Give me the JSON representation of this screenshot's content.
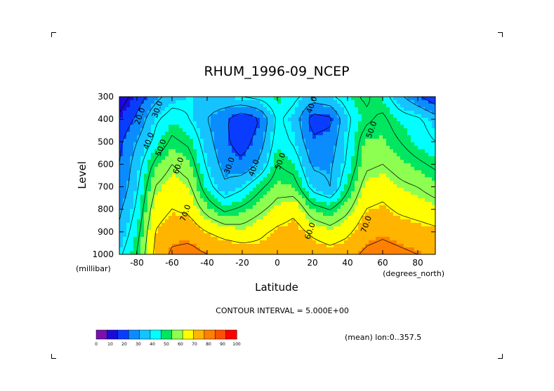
{
  "chart_data": {
    "type": "heatmap",
    "title": "RHUM_1996-09_NCEP",
    "xlabel": "Latitude",
    "ylabel": "Level",
    "x_units": "(degrees_north)",
    "y_units": "(millibar)",
    "xlim": [
      -90,
      90
    ],
    "ylim": [
      1000,
      300
    ],
    "x_ticks": [
      -80,
      -60,
      -40,
      -20,
      0,
      20,
      40,
      60,
      80
    ],
    "x_tick_labels": [
      "-80",
      "-60",
      "-40",
      "-20",
      "0",
      "20",
      "40",
      "60",
      "80"
    ],
    "y_ticks": [
      300,
      400,
      500,
      600,
      700,
      800,
      900,
      1000
    ],
    "y_tick_labels": [
      "300",
      "400",
      "500",
      "600",
      "700",
      "800",
      "900",
      "1000"
    ],
    "contour_interval_text": "CONTOUR INTERVAL = 5.000E+00",
    "footnote": "(mean) lon:0..357.5",
    "contour_labels": [
      {
        "text": "20.0",
        "lat": -77,
        "lev": 390
      },
      {
        "text": "30.0",
        "lat": -67,
        "lev": 360
      },
      {
        "text": "40.0",
        "lat": -72,
        "lev": 500
      },
      {
        "text": "50.0",
        "lat": -65,
        "lev": 530
      },
      {
        "text": "60.0",
        "lat": -55,
        "lev": 610
      },
      {
        "text": "70.0",
        "lat": -51,
        "lev": 820
      },
      {
        "text": "30.0",
        "lat": -26,
        "lev": 610
      },
      {
        "text": "40.0",
        "lat": -12,
        "lev": 620
      },
      {
        "text": "50.0",
        "lat": 3,
        "lev": 590
      },
      {
        "text": "40.0",
        "lat": 21,
        "lev": 340
      },
      {
        "text": "50.0",
        "lat": 55,
        "lev": 450
      },
      {
        "text": "60.0",
        "lat": 20,
        "lev": 900
      },
      {
        "text": "70.0",
        "lat": 52,
        "lev": 870
      }
    ],
    "field": {
      "latitudes": [
        -90,
        -80,
        -70,
        -60,
        -50,
        -40,
        -30,
        -20,
        -10,
        0,
        10,
        20,
        30,
        40,
        50,
        60,
        70,
        80,
        90
      ],
      "levels": [
        300,
        400,
        500,
        600,
        700,
        800,
        900,
        1000
      ],
      "values": [
        [
          5,
          14,
          26,
          35,
          38,
          36,
          38,
          40,
          43,
          48,
          42,
          35,
          38,
          45,
          52,
          45,
          32,
          22,
          12
        ],
        [
          12,
          22,
          38,
          45,
          40,
          30,
          22,
          12,
          20,
          42,
          35,
          15,
          18,
          38,
          48,
          52,
          45,
          42,
          35
        ],
        [
          18,
          30,
          42,
          52,
          48,
          34,
          22,
          15,
          25,
          45,
          38,
          22,
          24,
          40,
          55,
          55,
          50,
          44,
          40
        ],
        [
          20,
          35,
          52,
          60,
          55,
          38,
          26,
          22,
          32,
          50,
          46,
          28,
          28,
          42,
          58,
          60,
          56,
          52,
          48
        ],
        [
          22,
          38,
          60,
          66,
          62,
          44,
          32,
          38,
          48,
          56,
          54,
          36,
          30,
          48,
          64,
          66,
          62,
          60,
          56
        ],
        [
          28,
          42,
          65,
          70,
          68,
          56,
          48,
          52,
          58,
          64,
          68,
          54,
          50,
          58,
          70,
          72,
          68,
          66,
          64
        ],
        [
          32,
          46,
          70,
          76,
          76,
          70,
          66,
          64,
          68,
          72,
          74,
          68,
          64,
          68,
          76,
          78,
          76,
          74,
          72
        ],
        [
          38,
          50,
          72,
          82,
          84,
          80,
          78,
          76,
          74,
          76,
          78,
          76,
          74,
          76,
          82,
          84,
          82,
          80,
          78
        ]
      ]
    },
    "colorbar": {
      "colors": [
        "#7a10b0",
        "#1a0bd8",
        "#0a3cff",
        "#0a8cff",
        "#14c3ff",
        "#00ffff",
        "#00e660",
        "#8cff50",
        "#ffff00",
        "#ffb400",
        "#ff8000",
        "#ff5000",
        "#ff0000"
      ],
      "tick_labels": [
        "0",
        "10",
        "20",
        "30",
        "40",
        "50",
        "60",
        "70",
        "80",
        "90",
        "100"
      ]
    }
  }
}
